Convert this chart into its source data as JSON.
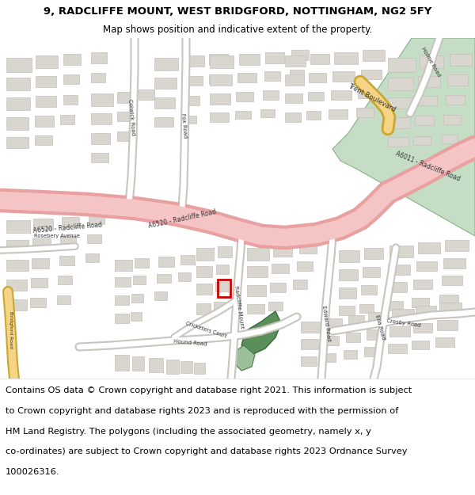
{
  "title_line1": "9, RADCLIFFE MOUNT, WEST BRIDGFORD, NOTTINGHAM, NG2 5FY",
  "title_line2": "Map shows position and indicative extent of the property.",
  "footer_lines": [
    "Contains OS data © Crown copyright and database right 2021. This information is subject",
    "to Crown copyright and database rights 2023 and is reproduced with the permission of",
    "HM Land Registry. The polygons (including the associated geometry, namely x, y",
    "co-ordinates) are subject to Crown copyright and database rights 2023 Ordnance Survey",
    "100026316."
  ],
  "title_fontsize": 9.5,
  "subtitle_fontsize": 8.5,
  "footer_fontsize": 8.2,
  "background_color": "#ffffff",
  "map_bg": "#f0ede8",
  "road_major_color": "#f5c4c4",
  "road_major_stroke": "#e8a0a0",
  "building_color": "#d9d6d0",
  "building_stroke": "#c4c0bb",
  "green_dark": "#5a8f5a",
  "green_light": "#9abf9a",
  "green_strip": "#c5dcc5",
  "green_strip_edge": "#8ab08a",
  "property_color": "#cc0000",
  "yellow_fill": "#f5d485",
  "yellow_stroke": "#c8a832",
  "road_white": "#ffffff",
  "road_outline": "#c8c4be"
}
